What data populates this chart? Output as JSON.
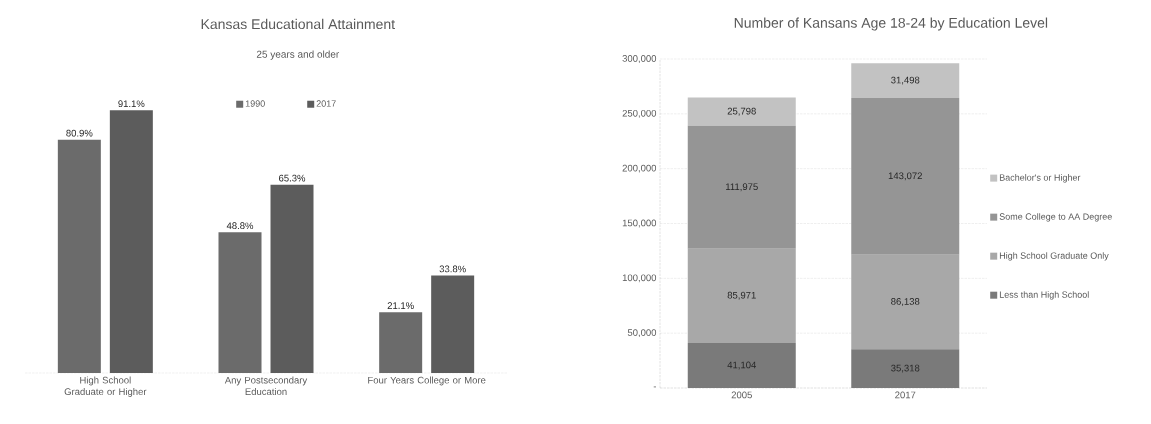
{
  "chart_data": [
    {
      "type": "bar",
      "title": "Kansas Educational Attainment",
      "subtitle": "25 years and older",
      "categories": [
        "High School Graduate or Higher",
        "Any Postsecondary Education",
        "Four Years College or More"
      ],
      "series": [
        {
          "name": "1990",
          "color": "#6b6b6b",
          "values": [
            80.9,
            48.8,
            21.1
          ],
          "value_labels": [
            "80.9%",
            "48.8%",
            "21.1%"
          ]
        },
        {
          "name": "2017",
          "color": "#5c5c5c",
          "values": [
            91.1,
            65.3,
            33.8
          ],
          "value_labels": [
            "91.1%",
            "65.3%",
            "33.8%"
          ]
        }
      ],
      "tick_labels": "x",
      "legend": "top"
    },
    {
      "type": "bar",
      "title": "Number of Kansans Age 18-24 by Education Level",
      "categories": [
        "2005",
        "2017"
      ],
      "stacked": true,
      "series": [
        {
          "name": "Less than High School",
          "color": "#7a7a7a",
          "values": [
            41104,
            35318
          ],
          "value_labels": [
            "41,104",
            "35,318"
          ]
        },
        {
          "name": "High School Graduate Only",
          "color": "#a8a8a8",
          "values": [
            85971,
            86138
          ],
          "value_labels": [
            "85,971",
            "86,138"
          ]
        },
        {
          "name": "Some College to AA Degree",
          "color": "#959595",
          "values": [
            111975,
            143072
          ],
          "value_labels": [
            "111,975",
            "143,072"
          ]
        },
        {
          "name": "Bachelor's or Higher",
          "color": "#c2c2c2",
          "values": [
            25798,
            31498
          ],
          "value_labels": [
            "25,798",
            "31,498"
          ]
        }
      ],
      "ylim": [
        0,
        300000
      ],
      "yticks": [
        {
          "value": 0,
          "label": "-"
        },
        {
          "value": 50000,
          "label": "50,000"
        },
        {
          "value": 100000,
          "label": "100,000"
        },
        {
          "value": 150000,
          "label": "150,000"
        },
        {
          "value": 200000,
          "label": "200,000"
        },
        {
          "value": 250000,
          "label": "250,000"
        },
        {
          "value": 300000,
          "label": "300,000"
        }
      ],
      "grid": "y",
      "legend": "right"
    }
  ]
}
